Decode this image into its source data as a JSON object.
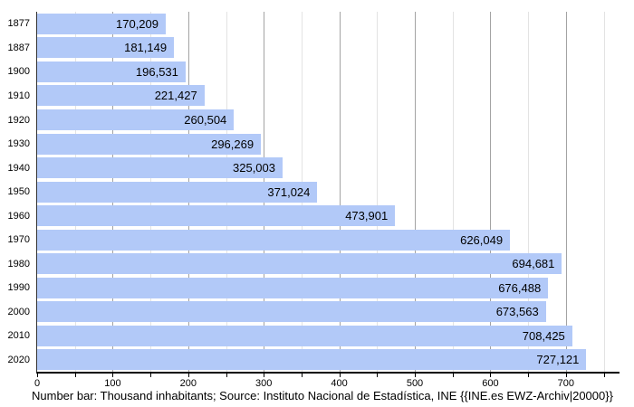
{
  "chart_data": {
    "type": "bar",
    "orientation": "horizontal",
    "title": "",
    "xlabel": "",
    "ylabel": "",
    "categories": [
      "1877",
      "1887",
      "1900",
      "1910",
      "1920",
      "1930",
      "1940",
      "1950",
      "1960",
      "1970",
      "1980",
      "1990",
      "2000",
      "2010",
      "2020"
    ],
    "values": [
      170209,
      181149,
      196531,
      221427,
      260504,
      296269,
      325003,
      371024,
      473901,
      626049,
      694681,
      676488,
      673563,
      708425,
      727121
    ],
    "value_labels": [
      "170,209",
      "181,149",
      "196,531",
      "221,427",
      "260,504",
      "296,269",
      "325,003",
      "371,024",
      "473,901",
      "626,049",
      "694,681",
      "676,488",
      "673,563",
      "708,425",
      "727,121"
    ],
    "unit_divisor": 1000,
    "axis": {
      "min": 0,
      "max": 771,
      "major_step": 100,
      "minor_step": 50,
      "tick_max": 750,
      "label_max": 700
    },
    "x_tick_labels": [
      "0",
      "100",
      "200",
      "300",
      "400",
      "500",
      "600",
      "700"
    ],
    "grid": "on",
    "legend": "none",
    "colors": {
      "bar_fill": "#b2c9f8",
      "major_grid": "#a3a3a3",
      "minor_grid": "#e3e3e3",
      "y_axis_line": "#333333",
      "x_axis_line": "#000000",
      "text": "#000000",
      "background": "#ffffff"
    },
    "caption": "Number bar: Thousand inhabitants; Source: Instituto Nacional de Estadística, INE {{INE.es EWZ-Archiv|20000}}"
  }
}
